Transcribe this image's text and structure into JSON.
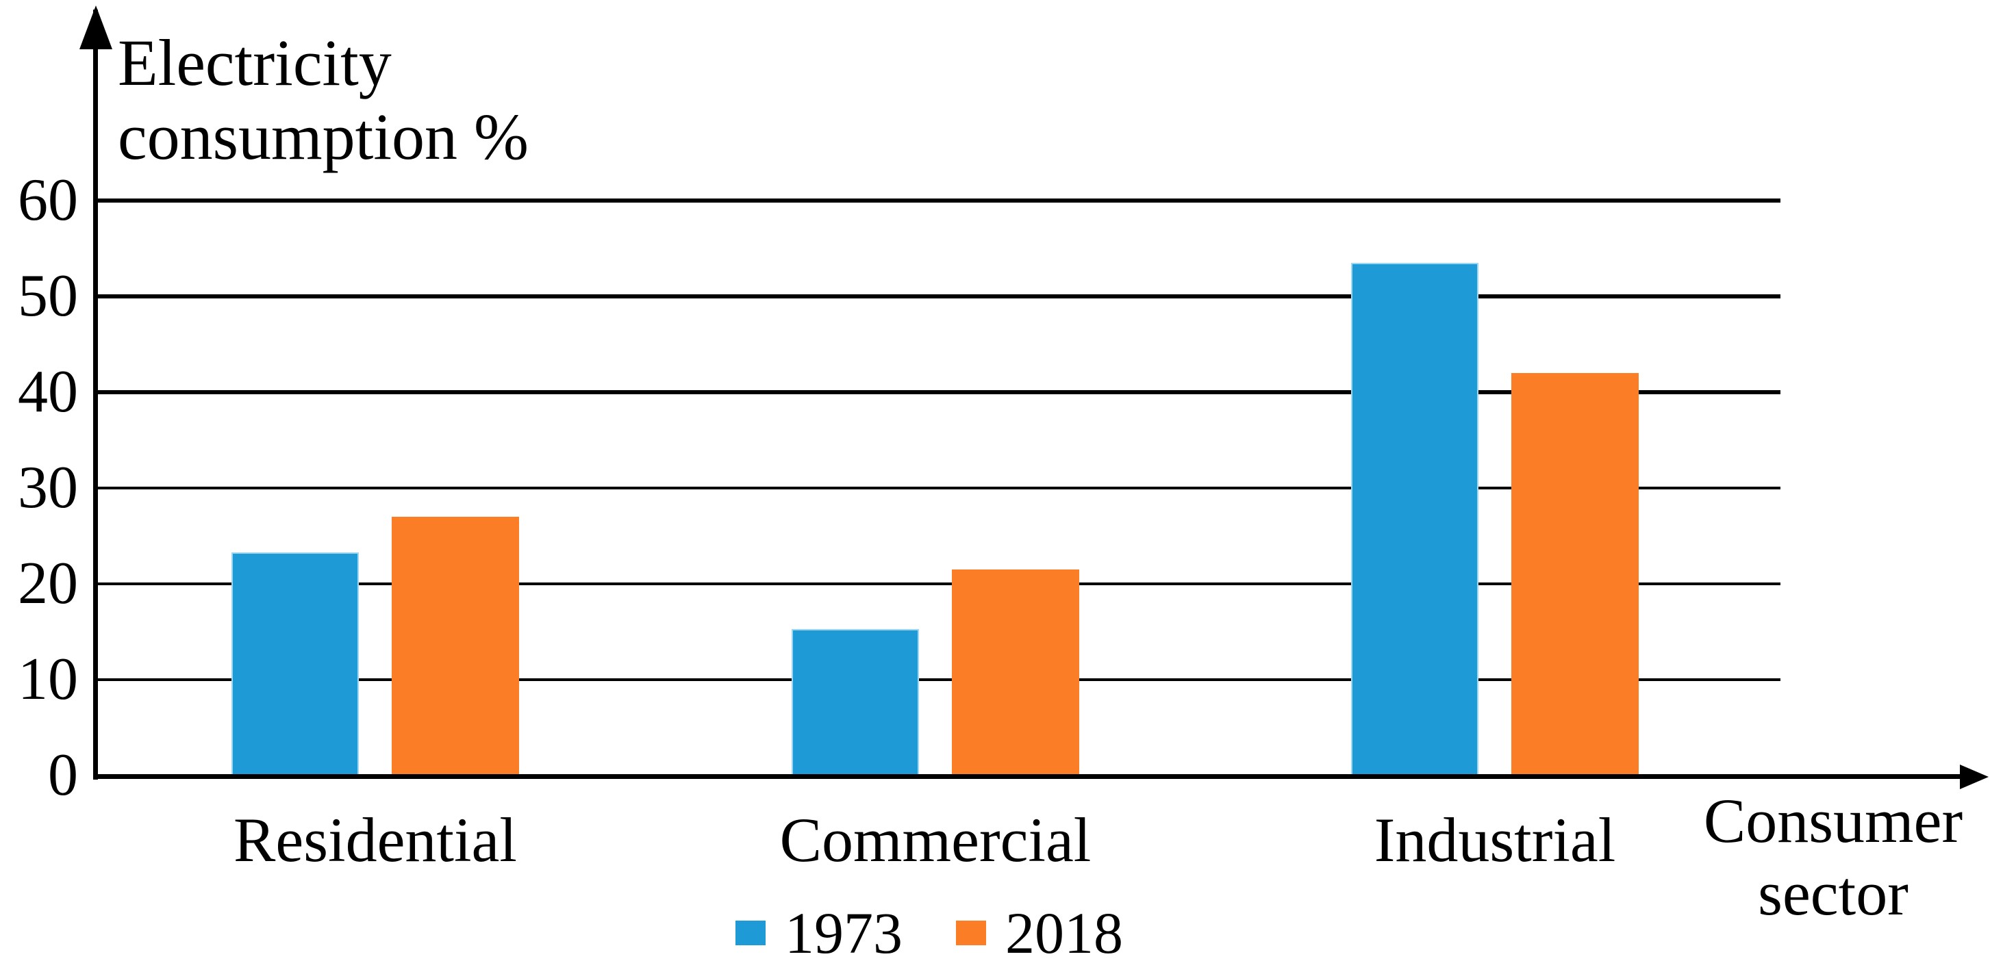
{
  "chart_data": {
    "type": "bar",
    "title": "",
    "ylabel": "Electricity consumption %",
    "ylabel_lines": [
      "Electricity",
      "consumption %"
    ],
    "xlabel": "Consumer sector",
    "xlabel_lines": [
      "Consumer",
      "sector"
    ],
    "categories": [
      "Residential",
      "Commercial",
      "Industrial"
    ],
    "series": [
      {
        "name": "1973",
        "color": "#1E9BD7",
        "values": [
          23.3,
          15.3,
          53.5
        ]
      },
      {
        "name": "2018",
        "color": "#FB7D26",
        "values": [
          27,
          21.5,
          42
        ]
      }
    ],
    "y_ticks": [
      0,
      10,
      20,
      30,
      40,
      50,
      60
    ],
    "ylim": [
      0,
      65
    ],
    "grid": true,
    "legend_position": "bottom-center",
    "axis_color": "#000000",
    "background_color": "#ffffff"
  }
}
